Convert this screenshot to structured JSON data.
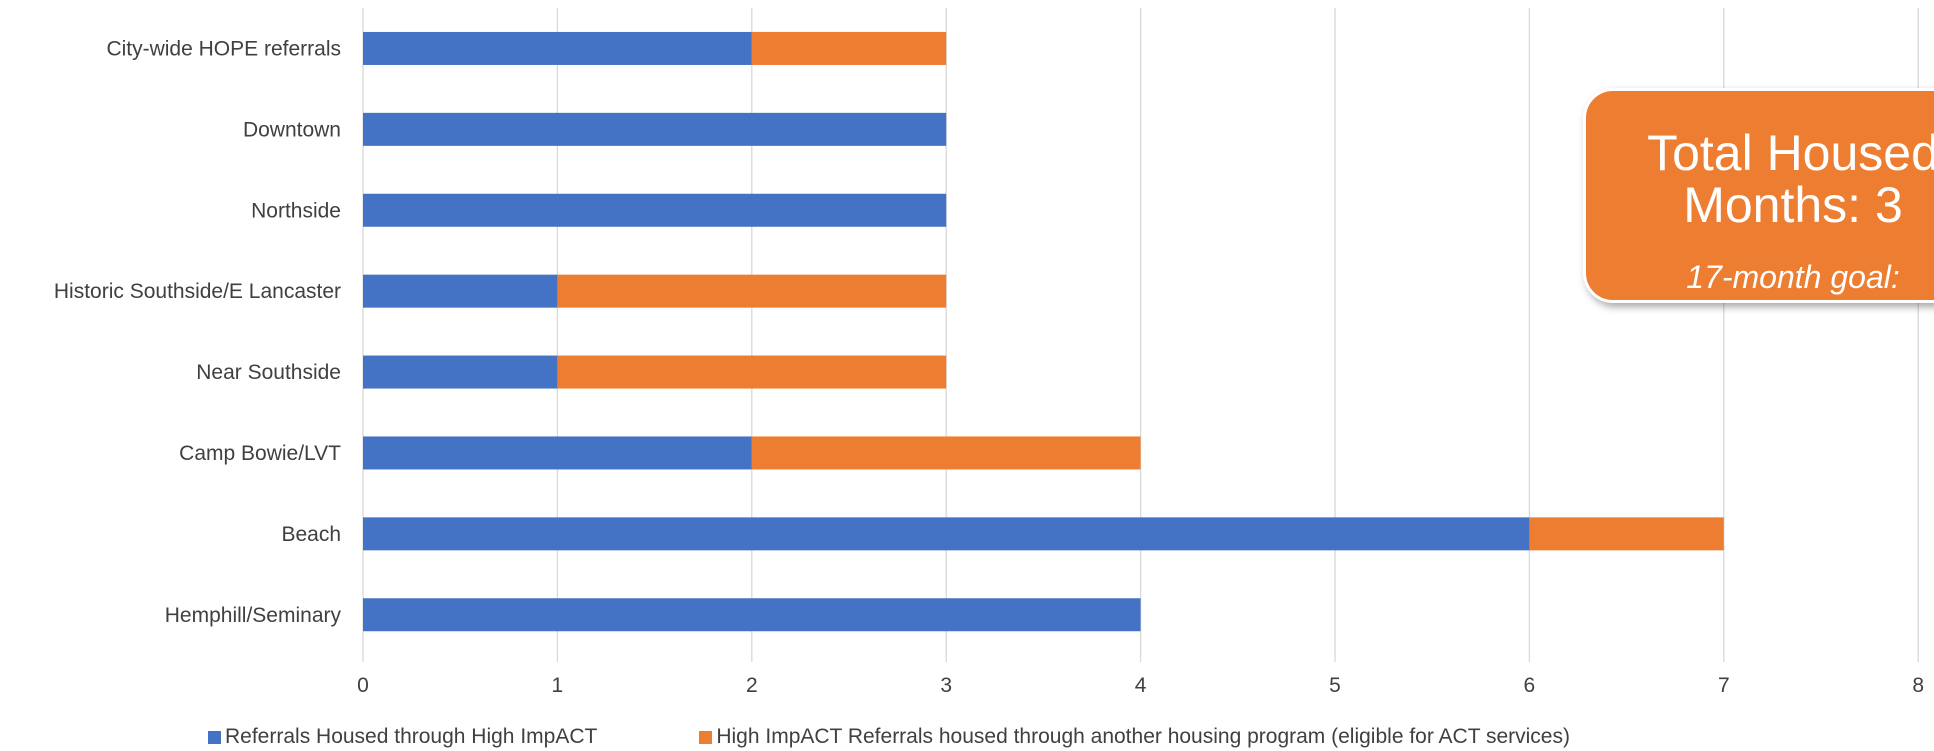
{
  "colors": {
    "series1": "#4472C4",
    "series2": "#ED7D31",
    "grid": "#D9D9D9",
    "text": "#404040",
    "callout_bg": "#ED7D31"
  },
  "callout": {
    "title": "Total Housed\nMonths: 3",
    "subtitle": "17-month goal:"
  },
  "chart_data": {
    "type": "bar",
    "orientation": "horizontal",
    "stacked": true,
    "categories": [
      "City-wide HOPE referrals",
      "Downtown",
      "Northside",
      "Historic Southside/E Lancaster",
      "Near Southside",
      "Camp Bowie/LVT",
      "Beach",
      "Hemphill/Seminary"
    ],
    "series": [
      {
        "name": "Referrals Housed through High ImpACT",
        "values": [
          2,
          3,
          3,
          1,
          1,
          2,
          6,
          4
        ]
      },
      {
        "name": "High ImpACT Referrals housed through another housing program (eligible for ACT services)",
        "values": [
          1,
          0,
          0,
          2,
          2,
          2,
          1,
          0
        ]
      }
    ],
    "xticks": [
      "0",
      "1",
      "2",
      "3",
      "4",
      "5",
      "6",
      "7",
      "8"
    ],
    "xlim": [
      0,
      8
    ],
    "grid": true,
    "legend": "bottom"
  }
}
